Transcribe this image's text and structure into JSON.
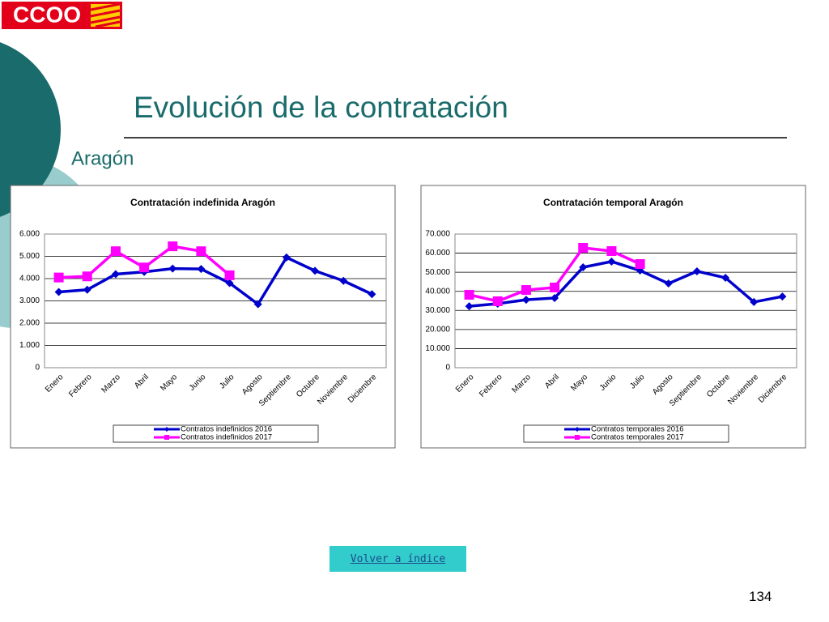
{
  "header": {
    "logo": "CCOO",
    "title": "Evolución de la contratación",
    "subtitle": "Aragón"
  },
  "chart_data": [
    {
      "type": "line",
      "title": "Contratación  indefinida  Aragón",
      "categories": [
        "Enero",
        "Febrero",
        "Marzo",
        "Abril",
        "Mayo",
        "Junio",
        "Julio",
        "Agosto",
        "Septiembre",
        "Octubre",
        "Noviembre",
        "Diciembre"
      ],
      "series": [
        {
          "name": "Contratos indefinidos 2016",
          "color": "#0000cc",
          "marker": "diamond",
          "values": [
            3400,
            3500,
            4200,
            4300,
            4450,
            4430,
            3800,
            2850,
            4950,
            4350,
            3900,
            3300
          ]
        },
        {
          "name": "Contratos indefinidos 2017",
          "color": "#ff00ff",
          "marker": "square",
          "values": [
            4050,
            4100,
            5230,
            4500,
            5450,
            5230,
            4150,
            null,
            null,
            null,
            null,
            null
          ]
        }
      ],
      "ylim": [
        0,
        6000
      ],
      "yticks": [
        0,
        {
          "value": 1000,
          "label": "1.000"
        },
        {
          "value": 2000,
          "label": "2.000"
        },
        {
          "value": 3000,
          "label": "3.000"
        },
        {
          "value": 4000,
          "label": "4.000"
        },
        {
          "value": 5000,
          "label": "5.000"
        },
        {
          "value": 6000,
          "label": "6.000"
        }
      ],
      "grid": true,
      "legend": "bottom"
    },
    {
      "type": "line",
      "title": "Contratación  temporal  Aragón",
      "categories": [
        "Enero",
        "Febrero",
        "Marzo",
        "Abril",
        "Mayo",
        "Junio",
        "Julio",
        "Agosto",
        "Septiembre",
        "Octubre",
        "Noviembre",
        "Diciembre"
      ],
      "series": [
        {
          "name": "Contratos temporales 2016",
          "color": "#0000cc",
          "marker": "diamond",
          "values": [
            32200,
            33500,
            35600,
            36500,
            52600,
            55600,
            50900,
            44100,
            50500,
            47100,
            34400,
            37300
          ]
        },
        {
          "name": "Contratos temporales 2017",
          "color": "#ff00ff",
          "marker": "square",
          "values": [
            38200,
            34800,
            40700,
            42000,
            62800,
            61100,
            54300,
            null,
            null,
            null,
            null,
            null
          ]
        }
      ],
      "ylim": [
        0,
        70000
      ],
      "yticks": [
        0,
        {
          "value": 10000,
          "label": "10.000"
        },
        {
          "value": 20000,
          "label": "20.000"
        },
        {
          "value": 30000,
          "label": "30.000"
        },
        {
          "value": 40000,
          "label": "40.000"
        },
        {
          "value": 50000,
          "label": "50.000"
        },
        {
          "value": 60000,
          "label": "60.000"
        },
        {
          "value": 70000,
          "label": "70.000"
        }
      ],
      "grid": true,
      "legend": "bottom"
    }
  ],
  "footer": {
    "link": "Volver a índice",
    "page_number": "134"
  }
}
